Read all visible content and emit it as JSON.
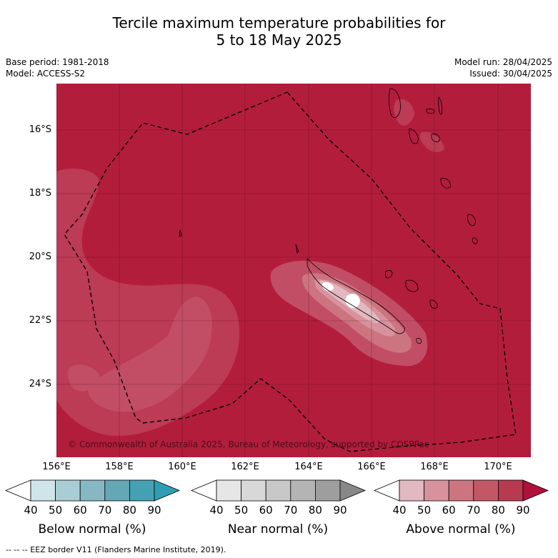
{
  "title": {
    "line1": "Tercile maximum temperature probabilities for",
    "line2": "5 to 18 May 2025"
  },
  "meta": {
    "base_period": "Base period: 1981-2018",
    "model": "Model: ACCESS-S2",
    "model_run": "Model run: 28/04/2025",
    "issued": "Issued: 30/04/2025"
  },
  "map": {
    "copyright": "© Commonwealth of Australia 2025, Bureau of Meteorology, supported by COSPPac",
    "lat_labels": [
      "16°S",
      "18°S",
      "20°S",
      "22°S",
      "24°S"
    ],
    "lon_labels": [
      "156°E",
      "158°E",
      "160°E",
      "162°E",
      "164°E",
      "166°E",
      "168°E",
      "170°E"
    ],
    "background_color": "#b31d3c"
  },
  "colorbars": [
    {
      "label": "Below normal (%)",
      "ticks": [
        "40",
        "50",
        "60",
        "70",
        "80",
        "90"
      ],
      "colors": [
        "#ffffff",
        "#cfe5ea",
        "#a9cdd5",
        "#86b8c4",
        "#64a7b5",
        "#43a1b3",
        "#2f9db3"
      ]
    },
    {
      "label": "Near normal (%)",
      "ticks": [
        "40",
        "50",
        "60",
        "70",
        "80",
        "90"
      ],
      "colors": [
        "#ffffff",
        "#e6e6e6",
        "#d8d8d8",
        "#c8c8c8",
        "#b4b4b4",
        "#9e9e9e",
        "#888888"
      ]
    },
    {
      "label": "Above normal (%)",
      "ticks": [
        "40",
        "50",
        "60",
        "70",
        "80",
        "90"
      ],
      "colors": [
        "#ffffff",
        "#e2b9c1",
        "#d8929d",
        "#cc7580",
        "#c25866",
        "#b83a50",
        "#b0113a"
      ]
    }
  ],
  "footer": {
    "legend": "--  --  -- EEZ border V11 (Flanders Marine Institute, 2019)."
  }
}
